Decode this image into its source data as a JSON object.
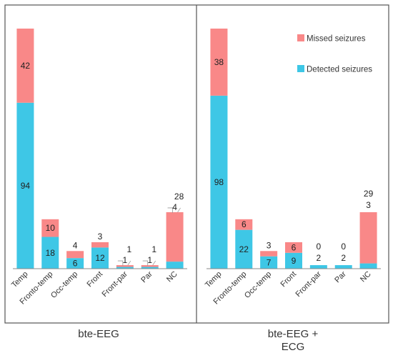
{
  "colors": {
    "detected": "#3EC7E6",
    "missed": "#F98888",
    "frame": "#555555",
    "axis": "#888888"
  },
  "chart_data": [
    {
      "type": "bar",
      "stacked": true,
      "title": "bte-EEG",
      "categories": [
        "Temp",
        "Fronto-temp",
        "Occ-temp",
        "Front",
        "Front-par",
        "Par",
        "NC"
      ],
      "series": [
        {
          "name": "Detected seizures",
          "values": [
            94,
            18,
            6,
            12,
            1,
            1,
            4
          ]
        },
        {
          "name": "Missed seizures",
          "values": [
            42,
            10,
            4,
            3,
            1,
            1,
            28
          ]
        }
      ],
      "legend": false
    },
    {
      "type": "bar",
      "stacked": true,
      "title_lines": [
        "bte-EEG +",
        "ECG"
      ],
      "categories": [
        "Temp",
        "Fronto-temp",
        "Occ-temp",
        "Front",
        "Front-par",
        "Par",
        "NC"
      ],
      "series": [
        {
          "name": "Detected seizures",
          "values": [
            98,
            22,
            7,
            9,
            2,
            2,
            3
          ]
        },
        {
          "name": "Missed seizures",
          "values": [
            38,
            6,
            3,
            6,
            0,
            0,
            29
          ]
        }
      ],
      "legend": true,
      "legend_position": "top-right",
      "legend_entries": [
        "Missed seizures",
        "Detected seizures"
      ]
    }
  ]
}
